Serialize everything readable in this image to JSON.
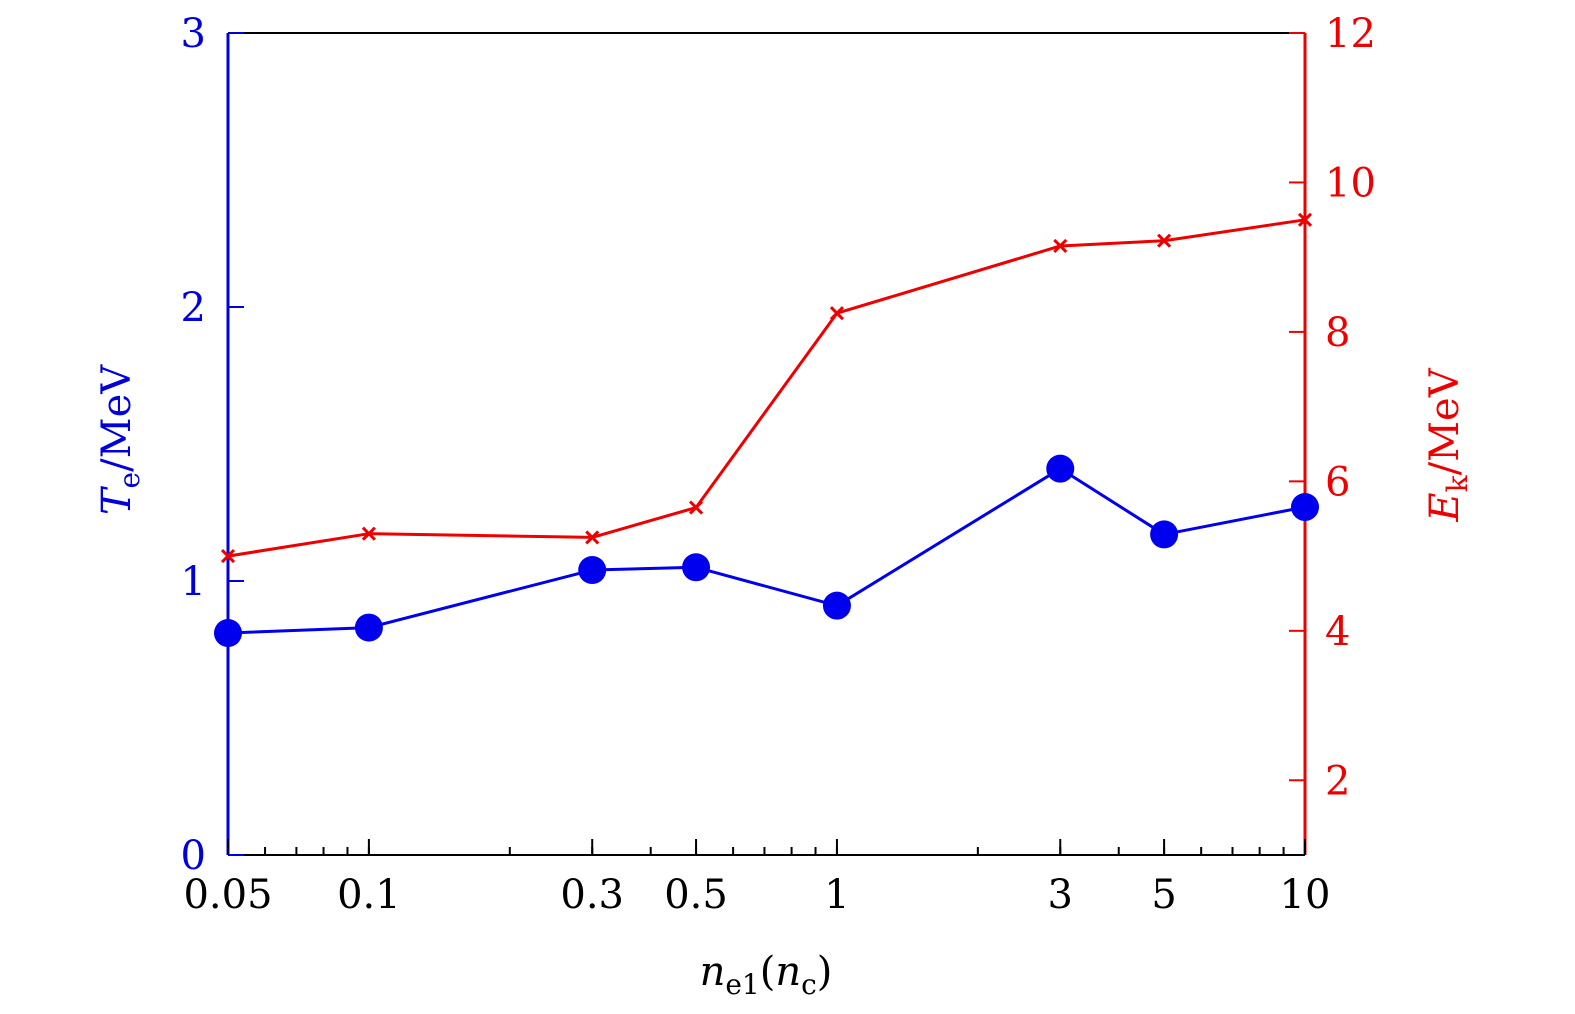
{
  "chart_data": {
    "type": "line",
    "title": "",
    "x": [
      0.05,
      0.1,
      0.3,
      0.5,
      1,
      3,
      5,
      10
    ],
    "x_scale": "log",
    "xlim": [
      0.05,
      10
    ],
    "x_ticks": [
      {
        "value": 0.05,
        "label": "0.05"
      },
      {
        "value": 0.1,
        "label": "0.1"
      },
      {
        "value": 0.3,
        "label": "0.3"
      },
      {
        "value": 0.5,
        "label": "0.5"
      },
      {
        "value": 1,
        "label": "1"
      },
      {
        "value": 3,
        "label": "3"
      },
      {
        "value": 5,
        "label": "5"
      },
      {
        "value": 10,
        "label": "10"
      }
    ],
    "xlabel": {
      "main": "n",
      "sub": "e1",
      "open": "(",
      "main2": "n",
      "sub2": "c",
      "close": ")"
    },
    "left_axis": {
      "ylim": [
        0,
        3
      ],
      "ticks": [
        {
          "value": 0,
          "label": "0"
        },
        {
          "value": 1,
          "label": "1"
        },
        {
          "value": 2,
          "label": "2"
        },
        {
          "value": 3,
          "label": "3"
        }
      ],
      "label": {
        "main": "T",
        "sub": "e",
        "unit": "/MeV"
      },
      "color": "#0000dd"
    },
    "right_axis": {
      "ylim": [
        1,
        12
      ],
      "ticks": [
        {
          "value": 2,
          "label": "2"
        },
        {
          "value": 4,
          "label": "4"
        },
        {
          "value": 6,
          "label": "6"
        },
        {
          "value": 8,
          "label": "8"
        },
        {
          "value": 10,
          "label": "10"
        },
        {
          "value": 12,
          "label": "12"
        }
      ],
      "label": {
        "main": "E",
        "sub": "k",
        "unit": "/MeV"
      },
      "color": "#ee0000"
    },
    "series": [
      {
        "name": "Te",
        "axis": "left",
        "marker": "circle",
        "color": "#0000ee",
        "values": [
          0.81,
          0.83,
          1.04,
          1.05,
          0.91,
          1.41,
          1.17,
          1.27
        ]
      },
      {
        "name": "Ek",
        "axis": "right",
        "marker": "x",
        "color": "#ee0000",
        "values": [
          5.0,
          5.3,
          5.25,
          5.65,
          8.25,
          9.15,
          9.22,
          9.5
        ]
      }
    ]
  }
}
